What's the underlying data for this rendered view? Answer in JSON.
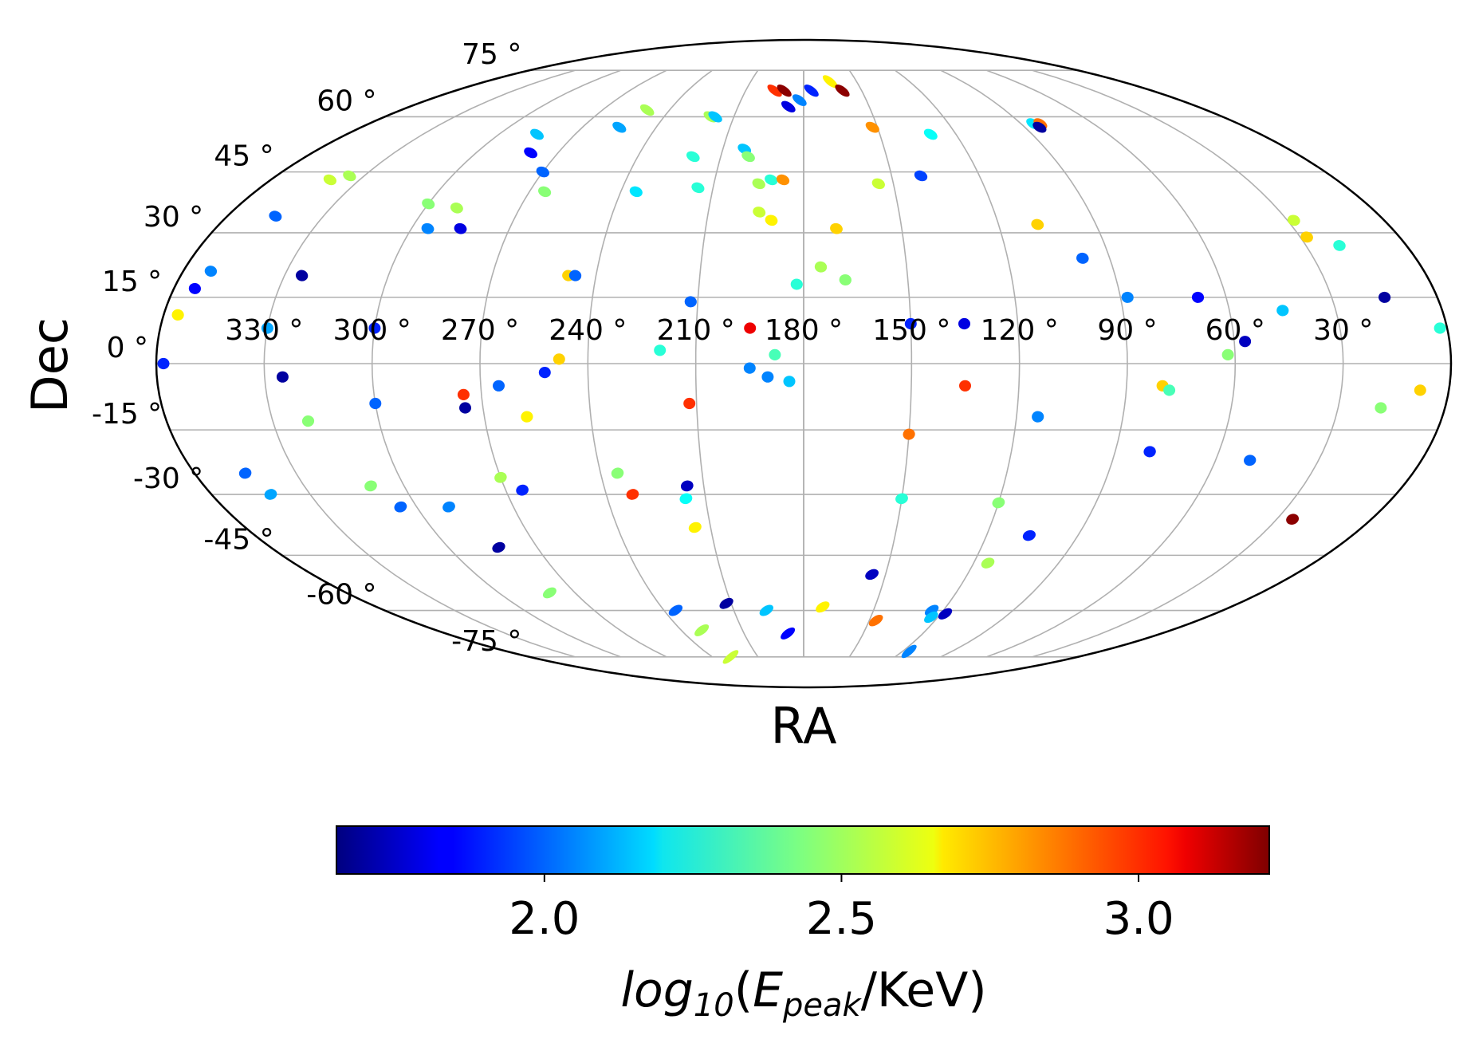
{
  "chart_data": {
    "type": "scatter",
    "projection": "mollweide",
    "xlabel": "RA",
    "ylabel": "Dec",
    "ra_ticks": [
      "330 °",
      "300 °",
      "270 °",
      "240 °",
      "210 °",
      "180 °",
      "150 °",
      "120 °",
      "90 °",
      "60 °",
      "30 °"
    ],
    "ra_tick_values": [
      330,
      300,
      270,
      240,
      210,
      180,
      150,
      120,
      90,
      60,
      30
    ],
    "dec_ticks": [
      "75 °",
      "60 °",
      "45 °",
      "30 °",
      "15 °",
      "0 °",
      "-15 °",
      "-30 °",
      "-45 °",
      "-60 °",
      "-75 °"
    ],
    "dec_tick_values": [
      75,
      60,
      45,
      30,
      15,
      0,
      -15,
      -30,
      -45,
      -60,
      -75
    ],
    "grid": true,
    "colorbar": {
      "label": "log10(Epeak/KeV)",
      "label_base": "log",
      "label_sub": "10",
      "label_open": "(",
      "label_var": "E",
      "label_var_sub": "peak",
      "label_rest": "/KeV)",
      "cmap": "jet",
      "range": [
        1.65,
        3.22
      ],
      "ticks": [
        2.0,
        2.5,
        3.0
      ],
      "tick_labels": [
        "2.0",
        "2.5",
        "3.0"
      ]
    },
    "points": [
      {
        "ra": 354,
        "dec": 17,
        "value": 1.85
      },
      {
        "ra": 352,
        "dec": 21,
        "value": 2.05
      },
      {
        "ra": 345,
        "dec": 34,
        "value": 2.0
      },
      {
        "ra": 340,
        "dec": 43,
        "value": 2.55
      },
      {
        "ra": 335,
        "dec": 44,
        "value": 2.5
      },
      {
        "ra": 356,
        "dec": 11,
        "value": 2.65
      },
      {
        "ra": 358,
        "dec": 0,
        "value": 1.9
      },
      {
        "ra": 330,
        "dec": 8,
        "value": 2.1
      },
      {
        "ra": 325,
        "dec": 20,
        "value": 1.7
      },
      {
        "ra": 325,
        "dec": -3,
        "value": 1.7
      },
      {
        "ra": 320,
        "dec": -13,
        "value": 2.45
      },
      {
        "ra": 345,
        "dec": -25,
        "value": 2.0
      },
      {
        "ra": 342,
        "dec": -30,
        "value": 2.1
      },
      {
        "ra": 300,
        "dec": 37,
        "value": 2.45
      },
      {
        "ra": 295,
        "dec": 31,
        "value": 2.05
      },
      {
        "ra": 300,
        "dec": 8,
        "value": 1.9
      },
      {
        "ra": 300,
        "dec": -9,
        "value": 2.0
      },
      {
        "ra": 310,
        "dec": -28,
        "value": 2.45
      },
      {
        "ra": 305,
        "dec": -33,
        "value": 2.0
      },
      {
        "ra": 290,
        "dec": -33,
        "value": 2.05
      },
      {
        "ra": 283,
        "dec": -43,
        "value": 1.7
      },
      {
        "ra": 280,
        "dec": -55,
        "value": 2.45
      },
      {
        "ra": 290,
        "dec": 36,
        "value": 2.5
      },
      {
        "ra": 285,
        "dec": 31,
        "value": 1.8
      },
      {
        "ra": 280,
        "dec": 50,
        "value": 1.85
      },
      {
        "ra": 285,
        "dec": 55,
        "value": 2.15
      },
      {
        "ra": 270,
        "dec": 45,
        "value": 2.0
      },
      {
        "ra": 265,
        "dec": 40,
        "value": 2.45
      },
      {
        "ra": 250,
        "dec": 62,
        "value": 2.5
      },
      {
        "ra": 255,
        "dec": 57,
        "value": 2.1
      },
      {
        "ra": 275,
        "dec": -7,
        "value": 2.95
      },
      {
        "ra": 275,
        "dec": -10,
        "value": 1.7
      },
      {
        "ra": 265,
        "dec": -5,
        "value": 2.0
      },
      {
        "ra": 270,
        "dec": -26,
        "value": 2.5
      },
      {
        "ra": 265,
        "dec": -29,
        "value": 1.9
      },
      {
        "ra": 258,
        "dec": -12,
        "value": 2.65
      },
      {
        "ra": 248,
        "dec": 20,
        "value": 2.7
      },
      {
        "ra": 246,
        "dec": 20,
        "value": 2.0
      },
      {
        "ra": 252,
        "dec": -2,
        "value": 1.9
      },
      {
        "ra": 248,
        "dec": 1,
        "value": 2.7
      },
      {
        "ra": 235,
        "dec": -25,
        "value": 2.45
      },
      {
        "ra": 232,
        "dec": -30,
        "value": 2.95
      },
      {
        "ra": 235,
        "dec": -60,
        "value": 2.0
      },
      {
        "ra": 230,
        "dec": -66,
        "value": 2.5
      },
      {
        "ra": 228,
        "dec": -75,
        "value": 2.55
      },
      {
        "ra": 235,
        "dec": 40,
        "value": 2.2
      },
      {
        "ra": 220,
        "dec": 60,
        "value": 2.5
      },
      {
        "ra": 218,
        "dec": 60,
        "value": 2.15
      },
      {
        "ra": 220,
        "dec": 49,
        "value": 2.3
      },
      {
        "ra": 215,
        "dec": 41,
        "value": 2.3
      },
      {
        "ra": 212,
        "dec": 14,
        "value": 2.0
      },
      {
        "ra": 220,
        "dec": 3,
        "value": 2.3
      },
      {
        "ra": 212,
        "dec": -9,
        "value": 2.95
      },
      {
        "ra": 215,
        "dec": -28,
        "value": 1.75
      },
      {
        "ra": 216,
        "dec": -31,
        "value": 2.25
      },
      {
        "ra": 215,
        "dec": -38,
        "value": 2.65
      },
      {
        "ra": 212,
        "dec": -58,
        "value": 1.7
      },
      {
        "ra": 202,
        "dec": 51,
        "value": 2.15
      },
      {
        "ra": 200,
        "dec": 49,
        "value": 2.45
      },
      {
        "ra": 195,
        "dec": 42,
        "value": 2.5
      },
      {
        "ra": 194,
        "dec": 35,
        "value": 2.55
      },
      {
        "ra": 190,
        "dec": 33,
        "value": 2.65
      },
      {
        "ra": 191,
        "dec": 43,
        "value": 2.3
      },
      {
        "ra": 187,
        "dec": 43,
        "value": 2.8
      },
      {
        "ra": 195,
        "dec": 68,
        "value": 2.95
      },
      {
        "ra": 190,
        "dec": 68,
        "value": 3.2
      },
      {
        "ra": 187,
        "dec": 63,
        "value": 1.8
      },
      {
        "ra": 182,
        "dec": 65,
        "value": 2.05
      },
      {
        "ra": 176,
        "dec": 68,
        "value": 1.9
      },
      {
        "ra": 165,
        "dec": 71,
        "value": 2.65
      },
      {
        "ra": 160,
        "dec": 68,
        "value": 3.2
      },
      {
        "ra": 195,
        "dec": 8,
        "value": 3.05
      },
      {
        "ra": 195,
        "dec": -1,
        "value": 2.05
      },
      {
        "ra": 190,
        "dec": -3,
        "value": 2.05
      },
      {
        "ra": 188,
        "dec": 2,
        "value": 2.35
      },
      {
        "ra": 184,
        "dec": -4,
        "value": 2.15
      },
      {
        "ra": 182,
        "dec": 18,
        "value": 2.3
      },
      {
        "ra": 175,
        "dec": 22,
        "value": 2.5
      },
      {
        "ra": 170,
        "dec": 31,
        "value": 2.7
      },
      {
        "ra": 168,
        "dec": 19,
        "value": 2.45
      },
      {
        "ra": 155,
        "dec": 42,
        "value": 2.55
      },
      {
        "ra": 152,
        "dec": 57,
        "value": 2.8
      },
      {
        "ra": 150,
        "dec": 9,
        "value": 1.9
      },
      {
        "ra": 135,
        "dec": 9,
        "value": 1.8
      },
      {
        "ra": 135,
        "dec": -5,
        "value": 2.95
      },
      {
        "ra": 150,
        "dec": -16,
        "value": 2.85
      },
      {
        "ra": 150,
        "dec": -31,
        "value": 2.3
      },
      {
        "ra": 140,
        "dec": 44,
        "value": 1.95
      },
      {
        "ra": 130,
        "dec": 55,
        "value": 2.25
      },
      {
        "ra": 108,
        "dec": 32,
        "value": 2.7
      },
      {
        "ra": 98,
        "dec": 24,
        "value": 2.0
      },
      {
        "ra": 88,
        "dec": 15,
        "value": 2.05
      },
      {
        "ra": 114,
        "dec": -12,
        "value": 2.05
      },
      {
        "ra": 120,
        "dec": -32,
        "value": 2.45
      },
      {
        "ra": 106,
        "dec": -40,
        "value": 1.9
      },
      {
        "ra": 115,
        "dec": -47,
        "value": 2.5
      },
      {
        "ra": 155,
        "dec": -50,
        "value": 1.75
      },
      {
        "ra": 172,
        "dec": -59,
        "value": 2.65
      },
      {
        "ra": 196,
        "dec": -60,
        "value": 2.15
      },
      {
        "ra": 188,
        "dec": -67,
        "value": 1.85
      },
      {
        "ra": 147,
        "dec": -63,
        "value": 2.85
      },
      {
        "ra": 125,
        "dec": -60,
        "value": 2.05
      },
      {
        "ra": 123,
        "dec": -62,
        "value": 2.15
      },
      {
        "ra": 118,
        "dec": -61,
        "value": 1.75
      },
      {
        "ra": 116,
        "dec": -73,
        "value": 2.05
      },
      {
        "ra": 85,
        "dec": 58,
        "value": 2.2
      },
      {
        "ra": 82,
        "dec": 58,
        "value": 2.85
      },
      {
        "ra": 84,
        "dec": 57,
        "value": 1.7
      },
      {
        "ra": 80,
        "dec": -5,
        "value": 2.7
      },
      {
        "ra": 78,
        "dec": -6,
        "value": 2.35
      },
      {
        "ra": 80,
        "dec": -20,
        "value": 1.9
      },
      {
        "ra": 68,
        "dec": 15,
        "value": 1.85
      },
      {
        "ra": 62,
        "dec": 2,
        "value": 2.45
      },
      {
        "ra": 57,
        "dec": 5,
        "value": 1.75
      },
      {
        "ra": 50,
        "dec": -22,
        "value": 2.0
      },
      {
        "ra": 45,
        "dec": 12,
        "value": 2.15
      },
      {
        "ra": 28,
        "dec": 33,
        "value": 2.55
      },
      {
        "ra": 28,
        "dec": 29,
        "value": 2.7
      },
      {
        "ra": 20,
        "dec": 27,
        "value": 2.3
      },
      {
        "ra": 15,
        "dec": 15,
        "value": 1.7
      },
      {
        "ra": 18,
        "dec": -10,
        "value": 2.45
      },
      {
        "ra": 8,
        "dec": -6,
        "value": 2.7
      },
      {
        "ra": 25,
        "dec": -36,
        "value": 3.2
      },
      {
        "ra": 2,
        "dec": 8,
        "value": 2.3
      }
    ]
  }
}
